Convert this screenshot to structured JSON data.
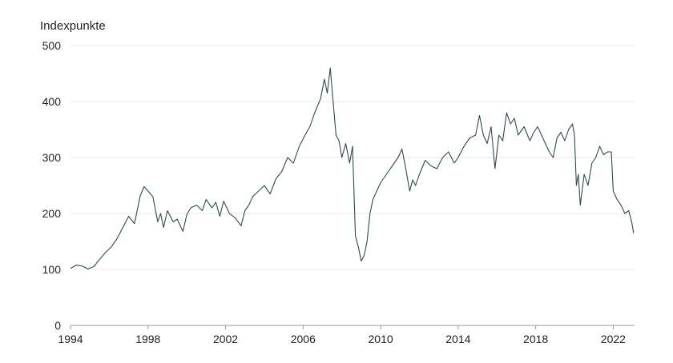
{
  "chart_data": {
    "type": "line",
    "ylabel": "Indexpunkte",
    "xlim": [
      1994.0,
      2023.1
    ],
    "ylim": [
      0,
      500
    ],
    "y_ticks": [
      0,
      100,
      200,
      300,
      400,
      500
    ],
    "x_ticks": [
      1994,
      1998,
      2002,
      2006,
      2010,
      2014,
      2018,
      2022
    ],
    "grid": "horizontal",
    "colors": {
      "line": "#2f4a4f",
      "grid": "#e6e6e6"
    },
    "series": [
      {
        "x": [
          1994.0,
          1994.3,
          1994.6,
          1994.9,
          1995.2,
          1995.5,
          1995.8,
          1996.1,
          1996.4,
          1996.7,
          1997.0,
          1997.3,
          1997.6,
          1997.8,
          1998.0,
          1998.25,
          1998.5,
          1998.65,
          1998.8,
          1999.0,
          1999.3,
          1999.5,
          1999.8,
          2000.0,
          2000.2,
          2000.5,
          2000.8,
          2001.0,
          2001.3,
          2001.5,
          2001.7,
          2001.9,
          2002.2,
          2002.5,
          2002.8,
          2003.0,
          2003.2,
          2003.4,
          2003.7,
          2004.0,
          2004.3,
          2004.6,
          2004.9,
          2005.2,
          2005.5,
          2005.8,
          2006.1,
          2006.35,
          2006.6,
          2006.9,
          2007.1,
          2007.25,
          2007.4,
          2007.55,
          2007.7,
          2007.85,
          2008.0,
          2008.2,
          2008.4,
          2008.55,
          2008.7,
          2008.85,
          2009.0,
          2009.15,
          2009.3,
          2009.45,
          2009.6,
          2009.8,
          2010.0,
          2010.3,
          2010.6,
          2010.9,
          2011.1,
          2011.3,
          2011.5,
          2011.65,
          2011.8,
          2012.0,
          2012.3,
          2012.6,
          2012.9,
          2013.2,
          2013.5,
          2013.8,
          2014.0,
          2014.3,
          2014.6,
          2014.9,
          2015.1,
          2015.3,
          2015.5,
          2015.7,
          2015.9,
          2016.1,
          2016.3,
          2016.5,
          2016.7,
          2016.9,
          2017.1,
          2017.4,
          2017.7,
          2017.9,
          2018.1,
          2018.3,
          2018.5,
          2018.7,
          2018.9,
          2019.1,
          2019.3,
          2019.5,
          2019.7,
          2019.9,
          2020.0,
          2020.1,
          2020.2,
          2020.3,
          2020.5,
          2020.7,
          2020.9,
          2021.1,
          2021.3,
          2021.5,
          2021.7,
          2021.9,
          2022.0,
          2022.2,
          2022.4,
          2022.6,
          2022.8,
          2022.95,
          2023.05
        ],
        "values": [
          102,
          108,
          106,
          101,
          105,
          118,
          130,
          140,
          155,
          175,
          195,
          182,
          232,
          248,
          240,
          230,
          185,
          200,
          175,
          205,
          185,
          190,
          168,
          198,
          210,
          215,
          205,
          225,
          210,
          220,
          195,
          222,
          200,
          192,
          178,
          205,
          215,
          230,
          240,
          250,
          235,
          262,
          275,
          300,
          290,
          320,
          340,
          355,
          380,
          405,
          440,
          415,
          460,
          400,
          340,
          330,
          300,
          325,
          290,
          320,
          160,
          140,
          115,
          125,
          150,
          200,
          225,
          240,
          255,
          270,
          285,
          300,
          315,
          280,
          240,
          260,
          250,
          270,
          295,
          285,
          280,
          300,
          310,
          290,
          300,
          320,
          335,
          340,
          375,
          340,
          325,
          355,
          280,
          340,
          330,
          380,
          360,
          370,
          340,
          355,
          330,
          345,
          355,
          340,
          325,
          310,
          300,
          335,
          345,
          330,
          350,
          360,
          340,
          250,
          270,
          215,
          270,
          250,
          290,
          300,
          320,
          305,
          310,
          310,
          240,
          225,
          215,
          200,
          205,
          185,
          165
        ]
      }
    ]
  }
}
